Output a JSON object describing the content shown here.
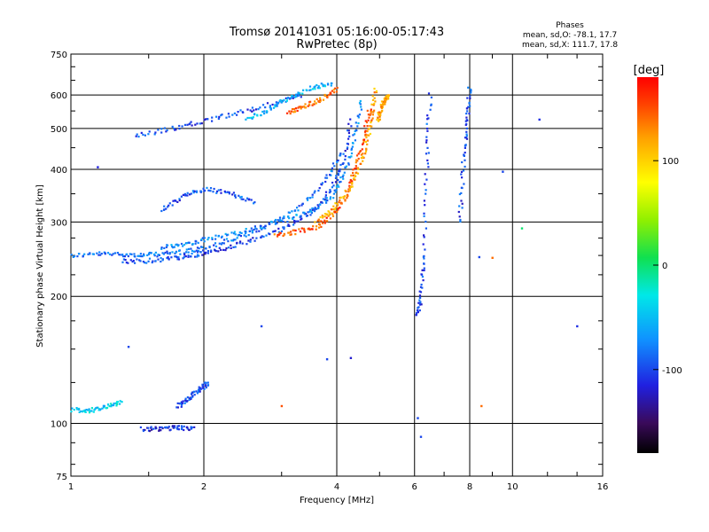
{
  "header": {
    "title_line1": "Tromsø 20141031 05:16:00-05:17:43",
    "title_line2": "RwPretec (8p)",
    "phase_heading": "Phases",
    "phase_o": "mean, sd,O: -78.1, 17.7",
    "phase_x": "mean, sd,X: 111.7, 17.8"
  },
  "colorbar": {
    "unit": "[deg]",
    "ticks": [
      {
        "value": 100,
        "label": "100"
      },
      {
        "value": 0,
        "label": "0"
      },
      {
        "value": -100,
        "label": "-100"
      }
    ],
    "range": [
      -180,
      180
    ]
  },
  "chart_data": {
    "type": "scatter",
    "title": "Tromsø 20141031 05:16:00-05:17:43",
    "subtitle": "RwPretec (8p)",
    "xlabel": "Frequency [MHz]",
    "ylabel": "Stationary phase Virtual Height [km]",
    "xscale": "log",
    "yscale": "log",
    "xlim": [
      1,
      16
    ],
    "ylim": [
      75,
      750
    ],
    "grid": true,
    "x_ticks": [
      {
        "value": 1,
        "label": "1"
      },
      {
        "value": 2,
        "label": "2"
      },
      {
        "value": 4,
        "label": "4"
      },
      {
        "value": 6,
        "label": "6"
      },
      {
        "value": 8,
        "label": "8"
      },
      {
        "value": 10,
        "label": "10"
      },
      {
        "value": 16,
        "label": "16"
      }
    ],
    "y_ticks": [
      {
        "value": 75,
        "label": "75"
      },
      {
        "value": 100,
        "label": "100"
      },
      {
        "value": 200,
        "label": "200"
      },
      {
        "value": 300,
        "label": "300"
      },
      {
        "value": 400,
        "label": "400"
      },
      {
        "value": 500,
        "label": "500"
      },
      {
        "value": 600,
        "label": "600"
      },
      {
        "value": 750,
        "label": "750"
      }
    ],
    "color_by": "phase_deg",
    "traces": [
      {
        "x": [
          1.0,
          1.15,
          1.3,
          1.45,
          1.6,
          1.8,
          2.0,
          2.3,
          2.6,
          3.0,
          3.4,
          3.8,
          4.1
        ],
        "y": [
          250,
          252,
          252,
          250,
          252,
          255,
          260,
          272,
          285,
          305,
          335,
          380,
          440
        ],
        "phase": -85
      },
      {
        "x": [
          1.3,
          1.5,
          1.7,
          1.9,
          2.1,
          2.4,
          2.8,
          3.2,
          3.6,
          3.9,
          4.15,
          4.3
        ],
        "y": [
          242,
          243,
          246,
          250,
          256,
          265,
          280,
          298,
          325,
          360,
          420,
          520
        ],
        "phase": -100
      },
      {
        "x": [
          1.6,
          1.8,
          2.0,
          2.3,
          2.7,
          3.1,
          3.5,
          3.9,
          4.2,
          4.4,
          4.55
        ],
        "y": [
          262,
          266,
          272,
          280,
          292,
          305,
          318,
          345,
          400,
          480,
          580
        ],
        "phase": -75
      },
      {
        "x": [
          2.9,
          3.2,
          3.6,
          3.9,
          4.2,
          4.4,
          4.6,
          4.75
        ],
        "y": [
          278,
          284,
          292,
          310,
          345,
          400,
          470,
          560
        ],
        "phase": 150
      },
      {
        "x": [
          3.6,
          3.9,
          4.2,
          4.45,
          4.65,
          4.8,
          4.9
        ],
        "y": [
          300,
          320,
          350,
          390,
          450,
          530,
          620
        ],
        "phase": 120
      },
      {
        "x": [
          1.4,
          1.7,
          2.0,
          2.4,
          2.9,
          3.3
        ],
        "y": [
          480,
          500,
          520,
          545,
          575,
          600
        ],
        "phase": -100
      },
      {
        "x": [
          2.5,
          2.8,
          3.1,
          3.5,
          3.9
        ],
        "y": [
          525,
          555,
          590,
          625,
          640
        ],
        "phase": -55
      },
      {
        "x": [
          3.1,
          3.4,
          3.7,
          4.0
        ],
        "y": [
          545,
          565,
          590,
          620
        ],
        "phase": 140
      },
      {
        "x": [
          1.6,
          1.8,
          2.0,
          2.3,
          2.6
        ],
        "y": [
          320,
          345,
          360,
          350,
          335
        ],
        "phase": -95
      },
      {
        "x": [
          1.45,
          1.6,
          1.75,
          1.9
        ],
        "y": [
          97,
          97,
          98,
          97
        ],
        "phase": -110
      },
      {
        "x": [
          1.0,
          1.1,
          1.2,
          1.3
        ],
        "y": [
          108,
          107,
          110,
          112
        ],
        "phase": -40
      },
      {
        "x": [
          1.75,
          1.85,
          1.95,
          2.05
        ],
        "y": [
          110,
          115,
          120,
          125
        ],
        "phase": -100
      },
      {
        "x": [
          4.95,
          5.05,
          5.15,
          5.25
        ],
        "y": [
          520,
          560,
          590,
          600
        ],
        "phase": 120
      },
      {
        "x": [
          6.1,
          6.2,
          6.3,
          6.4,
          6.5
        ],
        "y": [
          180,
          200,
          250,
          420,
          600
        ],
        "phase": -100
      },
      {
        "x": [
          7.6,
          7.75,
          7.9,
          8.0
        ],
        "y": [
          300,
          420,
          520,
          620
        ],
        "phase": -100
      }
    ],
    "isolated_points": [
      {
        "x": 1.15,
        "y": 405,
        "phase": -115
      },
      {
        "x": 1.35,
        "y": 152,
        "phase": -100
      },
      {
        "x": 2.7,
        "y": 170,
        "phase": -100
      },
      {
        "x": 3.8,
        "y": 142,
        "phase": -100
      },
      {
        "x": 4.3,
        "y": 143,
        "phase": -120
      },
      {
        "x": 8.4,
        "y": 248,
        "phase": -100
      },
      {
        "x": 9.0,
        "y": 247,
        "phase": 140
      },
      {
        "x": 9.5,
        "y": 395,
        "phase": -100
      },
      {
        "x": 10.5,
        "y": 290,
        "phase": 0
      },
      {
        "x": 11.5,
        "y": 525,
        "phase": -110
      },
      {
        "x": 14.0,
        "y": 170,
        "phase": -110
      },
      {
        "x": 8.5,
        "y": 110,
        "phase": 140
      },
      {
        "x": 3.0,
        "y": 110,
        "phase": 150
      },
      {
        "x": 6.1,
        "y": 103,
        "phase": -100
      },
      {
        "x": 6.2,
        "y": 93,
        "phase": -100
      }
    ]
  }
}
